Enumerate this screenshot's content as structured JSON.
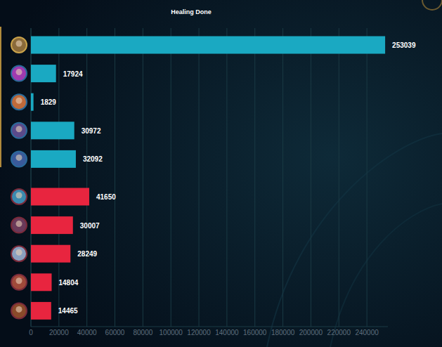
{
  "chart_data": {
    "type": "bar",
    "title": "Healing Done",
    "orientation": "horizontal",
    "categories": [
      null,
      null,
      null,
      null,
      null,
      null,
      null,
      null,
      null,
      null
    ],
    "values": [
      253039,
      17924,
      1829,
      30972,
      32092,
      41650,
      30007,
      28249,
      14804,
      14465
    ],
    "colors": [
      "#1aa9c2",
      "#1aa9c2",
      "#1aa9c2",
      "#1aa9c2",
      "#1aa9c2",
      "#e8253f",
      "#e8253f",
      "#e8253f",
      "#e8253f",
      "#e8253f"
    ],
    "xlim": [
      0,
      255000
    ],
    "xticks": [
      0,
      20000,
      40000,
      60000,
      80000,
      100000,
      120000,
      140000,
      160000,
      180000,
      200000,
      220000,
      240000
    ],
    "grid": true,
    "data_labels": true,
    "tick_labels": "x"
  }
}
